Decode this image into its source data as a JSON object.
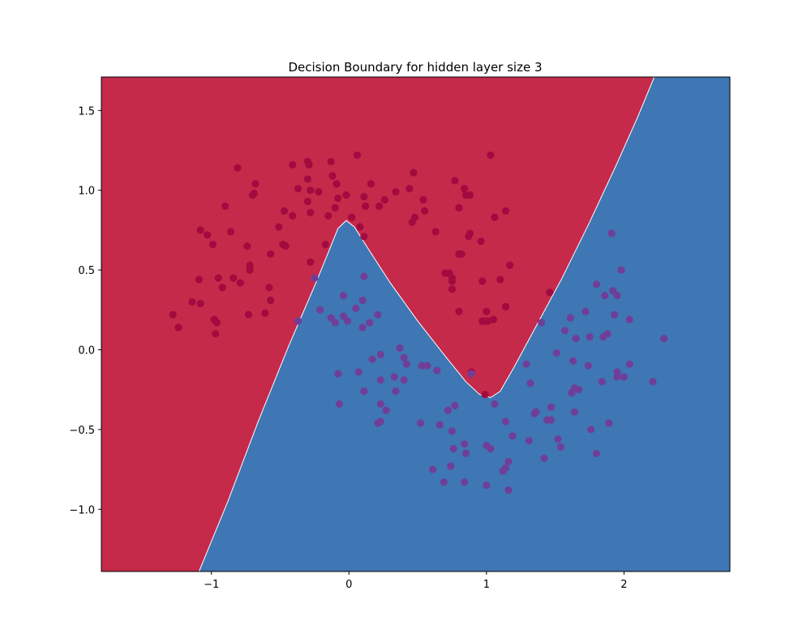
{
  "chart_data": {
    "type": "scatter",
    "title": "Decision Boundary for hidden layer size 3",
    "xlabel": "",
    "ylabel": "",
    "xlim": [
      -1.8,
      2.77
    ],
    "ylim": [
      -1.39,
      1.71
    ],
    "grid": false,
    "x_ticks": [
      -1,
      0,
      1,
      2
    ],
    "x_tick_labels": [
      "−1",
      "0",
      "1",
      "2"
    ],
    "y_ticks": [
      -1.0,
      -0.5,
      0.0,
      0.5,
      1.0,
      1.5
    ],
    "y_tick_labels": [
      "−1.0",
      "−0.5",
      "0.0",
      "0.5",
      "1.0",
      "1.5"
    ],
    "regions": {
      "class0_color": "#c52a4b",
      "class1_color": "#3f76b4",
      "boundary": [
        [
          -1.09,
          -1.39
        ],
        [
          -0.88,
          -0.95
        ],
        [
          -0.66,
          -0.45
        ],
        [
          -0.44,
          0.02
        ],
        [
          -0.24,
          0.42
        ],
        [
          -0.15,
          0.61
        ],
        [
          -0.08,
          0.76
        ],
        [
          -0.02,
          0.81
        ],
        [
          0.04,
          0.77
        ],
        [
          0.15,
          0.62
        ],
        [
          0.3,
          0.42
        ],
        [
          0.5,
          0.18
        ],
        [
          0.7,
          -0.04
        ],
        [
          0.85,
          -0.2
        ],
        [
          0.95,
          -0.28
        ],
        [
          1.03,
          -0.3
        ],
        [
          1.1,
          -0.26
        ],
        [
          1.2,
          -0.11
        ],
        [
          1.35,
          0.13
        ],
        [
          1.55,
          0.45
        ],
        [
          1.75,
          0.8
        ],
        [
          1.95,
          1.17
        ],
        [
          2.1,
          1.46
        ],
        [
          2.22,
          1.71
        ]
      ]
    },
    "series": [
      {
        "class": 0,
        "color": "#a30a3f",
        "points": [
          [
            -1.28,
            0.22
          ],
          [
            -1.24,
            0.14
          ],
          [
            -1.14,
            0.3
          ],
          [
            -1.09,
            0.44
          ],
          [
            -1.08,
            0.29
          ],
          [
            -1.08,
            0.75
          ],
          [
            -1.03,
            0.72
          ],
          [
            -0.99,
            0.66
          ],
          [
            -0.98,
            0.19
          ],
          [
            -0.97,
            0.1
          ],
          [
            -0.96,
            0.17
          ],
          [
            -0.95,
            0.45
          ],
          [
            -0.92,
            0.39
          ],
          [
            -0.9,
            0.9
          ],
          [
            -0.86,
            0.74
          ],
          [
            -0.84,
            0.45
          ],
          [
            -0.81,
            1.14
          ],
          [
            -0.79,
            0.42
          ],
          [
            -0.74,
            0.65
          ],
          [
            -0.73,
            0.22
          ],
          [
            -0.72,
            0.5
          ],
          [
            -0.72,
            0.53
          ],
          [
            -0.7,
            0.97
          ],
          [
            -0.69,
            0.98
          ],
          [
            -0.68,
            1.04
          ],
          [
            -0.61,
            0.23
          ],
          [
            -0.58,
            0.39
          ],
          [
            -0.57,
            0.6
          ],
          [
            -0.57,
            0.31
          ],
          [
            -0.51,
            0.77
          ],
          [
            -0.48,
            0.66
          ],
          [
            -0.47,
            0.87
          ],
          [
            -0.46,
            0.65
          ],
          [
            -0.41,
            0.84
          ],
          [
            -0.41,
            1.16
          ],
          [
            -0.37,
            1.01
          ],
          [
            -0.3,
            1.07
          ],
          [
            -0.3,
            0.93
          ],
          [
            -0.3,
            1.18
          ],
          [
            -0.29,
            1.16
          ],
          [
            -0.28,
            1.0
          ],
          [
            -0.28,
            0.55
          ],
          [
            -0.28,
            0.86
          ],
          [
            -0.22,
            0.99
          ],
          [
            -0.17,
            0.66
          ],
          [
            -0.15,
            0.84
          ],
          [
            -0.13,
            1.18
          ],
          [
            -0.12,
            1.09
          ],
          [
            -0.1,
            0.89
          ],
          [
            -0.09,
            1.04
          ],
          [
            -0.08,
            0.95
          ],
          [
            -0.02,
            0.97
          ],
          [
            0.02,
            0.83
          ],
          [
            0.06,
            1.22
          ],
          [
            0.08,
            0.77
          ],
          [
            0.11,
            0.71
          ],
          [
            0.11,
            0.96
          ],
          [
            0.12,
            0.9
          ],
          [
            0.16,
            1.04
          ],
          [
            0.22,
            0.9
          ],
          [
            0.26,
            0.94
          ],
          [
            0.34,
            0.99
          ],
          [
            0.44,
            1.01
          ],
          [
            0.46,
            0.8
          ],
          [
            0.47,
            1.11
          ],
          [
            0.48,
            0.83
          ],
          [
            0.54,
            0.94
          ],
          [
            0.55,
            0.87
          ],
          [
            0.63,
            0.74
          ],
          [
            0.7,
            0.48
          ],
          [
            0.73,
            0.48
          ],
          [
            0.75,
            0.43
          ],
          [
            0.75,
            0.45
          ],
          [
            0.75,
            0.38
          ],
          [
            0.77,
            1.06
          ],
          [
            0.8,
            0.89
          ],
          [
            0.8,
            0.24
          ],
          [
            0.82,
            0.6
          ],
          [
            0.84,
            1.01
          ],
          [
            0.85,
            0.97
          ],
          [
            0.87,
            0.71
          ],
          [
            0.88,
            0.97
          ],
          [
            0.88,
            0.73
          ],
          [
            0.96,
            0.68
          ],
          [
            0.97,
            0.18
          ],
          [
            0.97,
            0.43
          ],
          [
            0.99,
            0.18
          ],
          [
            1.0,
            0.24
          ],
          [
            1.01,
            0.18
          ],
          [
            1.03,
            1.22
          ],
          [
            1.05,
            0.19
          ],
          [
            1.06,
            0.83
          ],
          [
            1.1,
            0.44
          ],
          [
            1.14,
            0.87
          ],
          [
            1.14,
            0.27
          ],
          [
            1.17,
            0.53
          ],
          [
            0.8,
            0.6
          ],
          [
            0.89,
            -0.14
          ],
          [
            0.99,
            -0.28
          ],
          [
            1.46,
            0.36
          ]
        ]
      },
      {
        "class": 1,
        "color": "#6f3f98",
        "points": [
          [
            -0.37,
            0.18
          ],
          [
            -0.25,
            0.45
          ],
          [
            -0.21,
            0.25
          ],
          [
            -0.13,
            0.2
          ],
          [
            -0.1,
            0.17
          ],
          [
            -0.08,
            -0.15
          ],
          [
            -0.07,
            -0.34
          ],
          [
            -0.04,
            0.34
          ],
          [
            -0.04,
            0.21
          ],
          [
            -0.01,
            0.18
          ],
          [
            0.05,
            0.26
          ],
          [
            0.07,
            -0.14
          ],
          [
            0.1,
            0.14
          ],
          [
            0.1,
            0.31
          ],
          [
            0.11,
            0.46
          ],
          [
            0.11,
            -0.26
          ],
          [
            0.15,
            0.17
          ],
          [
            0.17,
            -0.06
          ],
          [
            0.21,
            0.22
          ],
          [
            0.21,
            -0.46
          ],
          [
            0.23,
            -0.45
          ],
          [
            0.23,
            -0.03
          ],
          [
            0.23,
            -0.19
          ],
          [
            0.23,
            -0.34
          ],
          [
            0.27,
            -0.38
          ],
          [
            0.33,
            -0.17
          ],
          [
            0.34,
            -0.26
          ],
          [
            0.37,
            0.01
          ],
          [
            0.4,
            -0.05
          ],
          [
            0.4,
            -0.19
          ],
          [
            0.42,
            -0.09
          ],
          [
            0.52,
            -0.46
          ],
          [
            0.53,
            -0.1
          ],
          [
            0.57,
            -0.1
          ],
          [
            0.61,
            -0.75
          ],
          [
            0.64,
            -0.13
          ],
          [
            0.66,
            -0.47
          ],
          [
            0.69,
            -0.83
          ],
          [
            0.72,
            -0.38
          ],
          [
            0.74,
            -0.73
          ],
          [
            0.75,
            -0.51
          ],
          [
            0.76,
            -0.62
          ],
          [
            0.77,
            -0.35
          ],
          [
            0.84,
            -0.83
          ],
          [
            0.84,
            -0.59
          ],
          [
            0.85,
            -0.65
          ],
          [
            0.89,
            -0.15
          ],
          [
            1.0,
            -0.85
          ],
          [
            1.0,
            -0.6
          ],
          [
            1.03,
            -0.62
          ],
          [
            1.06,
            -0.34
          ],
          [
            1.12,
            -0.76
          ],
          [
            1.14,
            -0.74
          ],
          [
            1.14,
            -0.45
          ],
          [
            1.16,
            -0.7
          ],
          [
            1.16,
            -0.88
          ],
          [
            1.19,
            -0.54
          ],
          [
            1.29,
            -0.09
          ],
          [
            1.31,
            -0.57
          ],
          [
            1.32,
            -0.21
          ],
          [
            1.35,
            -0.4
          ],
          [
            1.36,
            -0.39
          ],
          [
            1.4,
            0.17
          ],
          [
            1.42,
            -0.68
          ],
          [
            1.44,
            -0.44
          ],
          [
            1.47,
            -0.44
          ],
          [
            1.47,
            -0.36
          ],
          [
            1.51,
            -0.02
          ],
          [
            1.52,
            -0.56
          ],
          [
            1.54,
            -0.61
          ],
          [
            1.57,
            0.12
          ],
          [
            1.61,
            0.2
          ],
          [
            1.62,
            -0.27
          ],
          [
            1.63,
            -0.07
          ],
          [
            1.64,
            -0.24
          ],
          [
            1.64,
            -0.39
          ],
          [
            1.65,
            0.07
          ],
          [
            1.67,
            -0.25
          ],
          [
            1.72,
            0.24
          ],
          [
            1.74,
            -0.1
          ],
          [
            1.75,
            0.08
          ],
          [
            1.76,
            -0.5
          ],
          [
            1.8,
            0.41
          ],
          [
            1.8,
            -0.65
          ],
          [
            1.84,
            -0.2
          ],
          [
            1.85,
            0.08
          ],
          [
            1.86,
            0.34
          ],
          [
            1.88,
            0.1
          ],
          [
            1.89,
            -0.46
          ],
          [
            1.91,
            0.73
          ],
          [
            1.92,
            0.37
          ],
          [
            1.93,
            0.22
          ],
          [
            1.95,
            -0.14
          ],
          [
            1.95,
            -0.17
          ],
          [
            1.95,
            0.34
          ],
          [
            1.98,
            0.5
          ],
          [
            2.0,
            -0.17
          ],
          [
            2.04,
            0.19
          ],
          [
            2.04,
            -0.09
          ],
          [
            2.21,
            -0.2
          ],
          [
            2.29,
            0.07
          ]
        ]
      }
    ]
  }
}
